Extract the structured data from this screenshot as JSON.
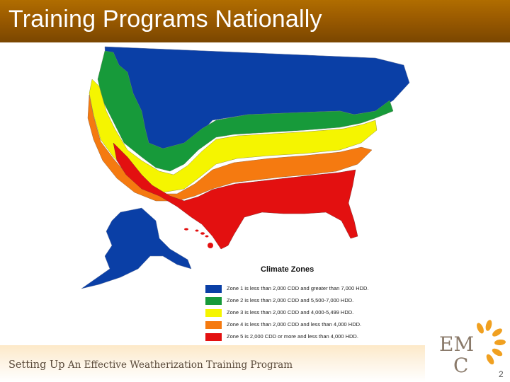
{
  "header": {
    "title": "Training Programs Nationally"
  },
  "legend": {
    "title": "Climate Zones",
    "zones": [
      {
        "label": "Zone 1 is less than 2,000 CDD and greater than 7,000 HDD.",
        "color": "#0a3fa6"
      },
      {
        "label": "Zone 2 is less than 2,000 CDD and 5,500-7,000 HDD.",
        "color": "#179a3a"
      },
      {
        "label": "Zone 3 is less than 2,000 CDD and 4,000-5,499 HDD.",
        "color": "#f5f500"
      },
      {
        "label": "Zone 4 is less than 2,000 CDD and less than 4,000 HDD.",
        "color": "#f57a10"
      },
      {
        "label": "Zone 5 is 2,000 CDD or more and less than 4,000 HDD.",
        "color": "#e31010"
      }
    ]
  },
  "footer": {
    "lead": "Setting Up",
    "rest": " An Effective Weatherization Training Program",
    "page_number": "2"
  },
  "logo": {
    "text": "EMC"
  }
}
